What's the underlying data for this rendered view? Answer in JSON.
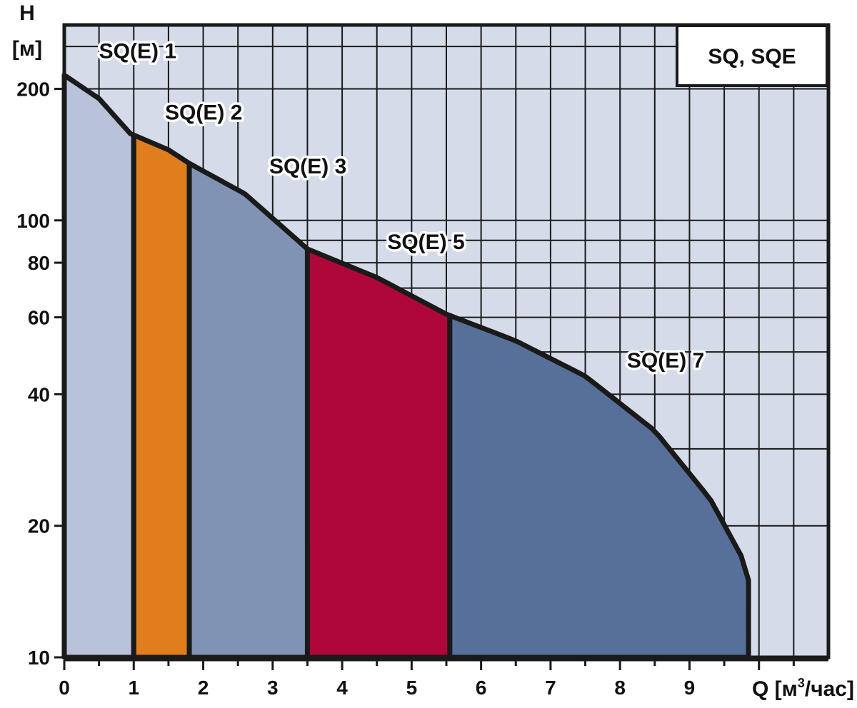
{
  "chart_data": {
    "type": "area",
    "title": "SQ, SQE",
    "xlabel": "Q [м³/час]",
    "xlabel_parts": {
      "q": "Q",
      "open": "[м",
      "sup": "3",
      "close": "/час]"
    },
    "ylabel": "H [м]",
    "ylabel_parts": {
      "letter": "H",
      "unit": "[м]"
    },
    "xlim": [
      0,
      11
    ],
    "ylim": [
      10,
      280
    ],
    "y_scale": "log",
    "grid": true,
    "x_ticks": [
      0,
      1,
      2,
      3,
      4,
      5,
      6,
      7,
      8,
      9
    ],
    "y_ticks": [
      10,
      20,
      40,
      60,
      80,
      100,
      200
    ],
    "curve": {
      "x": [
        0,
        0.5,
        0.95,
        1.5,
        1.8,
        2.6,
        3.5,
        4.5,
        5.5,
        6.5,
        7.5,
        8.5,
        9.3,
        9.75,
        9.85
      ],
      "y": [
        215,
        190,
        158,
        145,
        135,
        115,
        86,
        74,
        61,
        53,
        44,
        33,
        23,
        17,
        15
      ]
    },
    "series": [
      {
        "name": "SQ(E) 1",
        "q_range": [
          0,
          1.0
        ],
        "color": "#b8c2d9"
      },
      {
        "name": "SQ(E) 2",
        "q_range": [
          1.0,
          1.8
        ],
        "color": "#e07d1d"
      },
      {
        "name": "SQ(E) 3",
        "q_range": [
          1.8,
          3.5
        ],
        "color": "#8093b4"
      },
      {
        "name": "SQ(E) 5",
        "q_range": [
          3.5,
          5.55
        ],
        "color": "#b0073a"
      },
      {
        "name": "SQ(E) 7",
        "q_range": [
          5.55,
          9.85
        ],
        "color": "#57709a"
      }
    ],
    "background_color": "#d5dbe8",
    "line_color": "#1a1a1a"
  }
}
